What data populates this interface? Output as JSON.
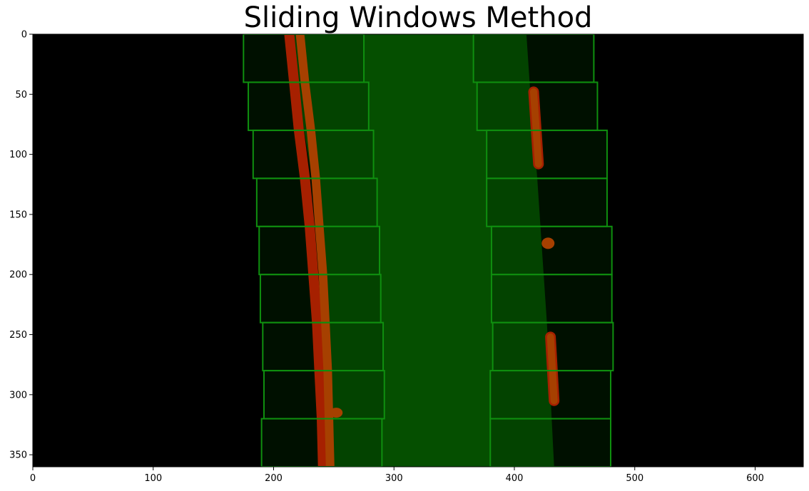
{
  "chart_data": {
    "type": "image",
    "title": "Sliding Windows Method",
    "xlim": [
      0,
      640
    ],
    "ylim": [
      360,
      0
    ],
    "xticks": [
      0,
      100,
      200,
      300,
      400,
      500,
      600
    ],
    "yticks": [
      0,
      50,
      100,
      150,
      200,
      250,
      300,
      350
    ],
    "background_color": "#000000",
    "lane_fill_color": "#054f00",
    "window_color": "#0f8f0f",
    "window_fill_color": "#012e00",
    "lane_pixel_colors": [
      "#ff1a00",
      "#ff4a00"
    ],
    "lane_area": {
      "left_edge": [
        [
          210,
          0
        ],
        [
          222,
          60
        ],
        [
          232,
          120
        ],
        [
          237,
          180
        ],
        [
          241,
          240
        ],
        [
          244,
          300
        ],
        [
          247,
          360
        ]
      ],
      "right_edge": [
        [
          410,
          0
        ],
        [
          414,
          60
        ],
        [
          419,
          120
        ],
        [
          423,
          180
        ],
        [
          427,
          240
        ],
        [
          430,
          300
        ],
        [
          433,
          360
        ]
      ]
    },
    "left_lane_pixels": {
      "inner_track": [
        [
          213,
          0
        ],
        [
          217,
          40
        ],
        [
          221,
          80
        ],
        [
          226,
          120
        ],
        [
          230,
          160
        ],
        [
          233,
          200
        ],
        [
          236,
          240
        ],
        [
          238,
          280
        ],
        [
          240,
          320
        ],
        [
          241,
          360
        ]
      ],
      "outer_track": [
        [
          222,
          0
        ],
        [
          226,
          40
        ],
        [
          231,
          80
        ],
        [
          235,
          120
        ],
        [
          238,
          160
        ],
        [
          241,
          200
        ],
        [
          243,
          240
        ],
        [
          245,
          280
        ],
        [
          246,
          320
        ],
        [
          247,
          360
        ]
      ],
      "blob": [
        252,
        315
      ]
    },
    "right_lane_segments": [
      {
        "top": [
          416,
          48
        ],
        "bottom": [
          420,
          108
        ]
      },
      {
        "blob": [
          428,
          174
        ]
      },
      {
        "top": [
          430,
          252
        ],
        "bottom": [
          433,
          305
        ]
      }
    ],
    "left_windows": [
      {
        "x0": 175,
        "x1": 275,
        "y0": 0,
        "y1": 40
      },
      {
        "x0": 179,
        "x1": 279,
        "y0": 40,
        "y1": 80
      },
      {
        "x0": 183,
        "x1": 283,
        "y0": 80,
        "y1": 120
      },
      {
        "x0": 186,
        "x1": 286,
        "y0": 120,
        "y1": 160
      },
      {
        "x0": 188,
        "x1": 288,
        "y0": 160,
        "y1": 200
      },
      {
        "x0": 189,
        "x1": 289,
        "y0": 200,
        "y1": 240
      },
      {
        "x0": 191,
        "x1": 291,
        "y0": 240,
        "y1": 280
      },
      {
        "x0": 192,
        "x1": 292,
        "y0": 280,
        "y1": 320
      },
      {
        "x0": 190,
        "x1": 290,
        "y0": 320,
        "y1": 360
      }
    ],
    "right_windows": [
      {
        "x0": 366,
        "x1": 466,
        "y0": 0,
        "y1": 40
      },
      {
        "x0": 369,
        "x1": 469,
        "y0": 40,
        "y1": 80
      },
      {
        "x0": 377,
        "x1": 477,
        "y0": 80,
        "y1": 120
      },
      {
        "x0": 377,
        "x1": 477,
        "y0": 120,
        "y1": 160
      },
      {
        "x0": 381,
        "x1": 481,
        "y0": 160,
        "y1": 200
      },
      {
        "x0": 381,
        "x1": 481,
        "y0": 200,
        "y1": 240
      },
      {
        "x0": 382,
        "x1": 482,
        "y0": 240,
        "y1": 280
      },
      {
        "x0": 380,
        "x1": 480,
        "y0": 280,
        "y1": 320
      },
      {
        "x0": 380,
        "x1": 480,
        "y0": 320,
        "y1": 360
      }
    ]
  }
}
